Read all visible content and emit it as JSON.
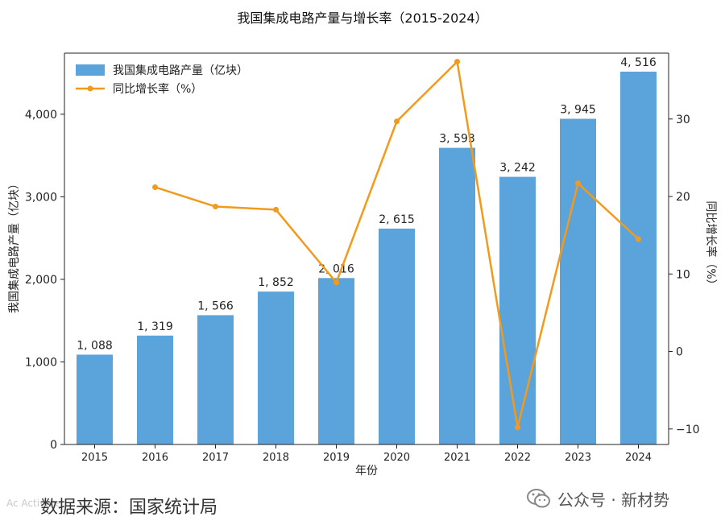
{
  "chart_data": {
    "type": "bar+line",
    "title": "我国集成电路产量与增长率（2015-2024）",
    "xlabel": "年份",
    "ylabel_left": "我国集成电路产量（亿块）",
    "ylabel_right": "同比增长率（%）",
    "categories": [
      "2015",
      "2016",
      "2017",
      "2018",
      "2019",
      "2020",
      "2021",
      "2022",
      "2023",
      "2024"
    ],
    "series": [
      {
        "name": "我国集成电路产量（亿块）",
        "kind": "bar",
        "axis": "left",
        "values": [
          1088,
          1319,
          1566,
          1852,
          2016,
          2615,
          3593,
          3242,
          3945,
          4516
        ],
        "labels": [
          "1, 088",
          "1, 319",
          "1, 566",
          "1, 852",
          "2, 016",
          "2, 615",
          "3, 593",
          "3, 242",
          "3, 945",
          "4, 516"
        ]
      },
      {
        "name": "同比增长率（%）",
        "kind": "line",
        "axis": "right",
        "values": [
          null,
          21.2,
          18.7,
          18.3,
          8.9,
          29.7,
          37.4,
          -9.8,
          21.7,
          14.5
        ]
      }
    ],
    "ylim_left": [
      0,
      4740
    ],
    "yticks_left": [
      0,
      1000,
      2000,
      3000,
      4000
    ],
    "ytick_labels_left": [
      "0",
      "1,000",
      "2,000",
      "3,000",
      "4,000"
    ],
    "ylim_right": [
      -12,
      38.5
    ],
    "yticks_right": [
      -10,
      0,
      10,
      20,
      30
    ],
    "ytick_labels_right": [
      "−10",
      "0",
      "10",
      "20",
      "30"
    ],
    "legend_position": "top-left",
    "colors": {
      "bar": "#5ba3db",
      "line": "#f29a1b"
    }
  },
  "footer": {
    "source_text": "数据来源：国家统计局",
    "brand_text": "公众号 · 新材势",
    "watermark_text": "Ac Activate",
    "brand_icon": "wechat-icon"
  }
}
